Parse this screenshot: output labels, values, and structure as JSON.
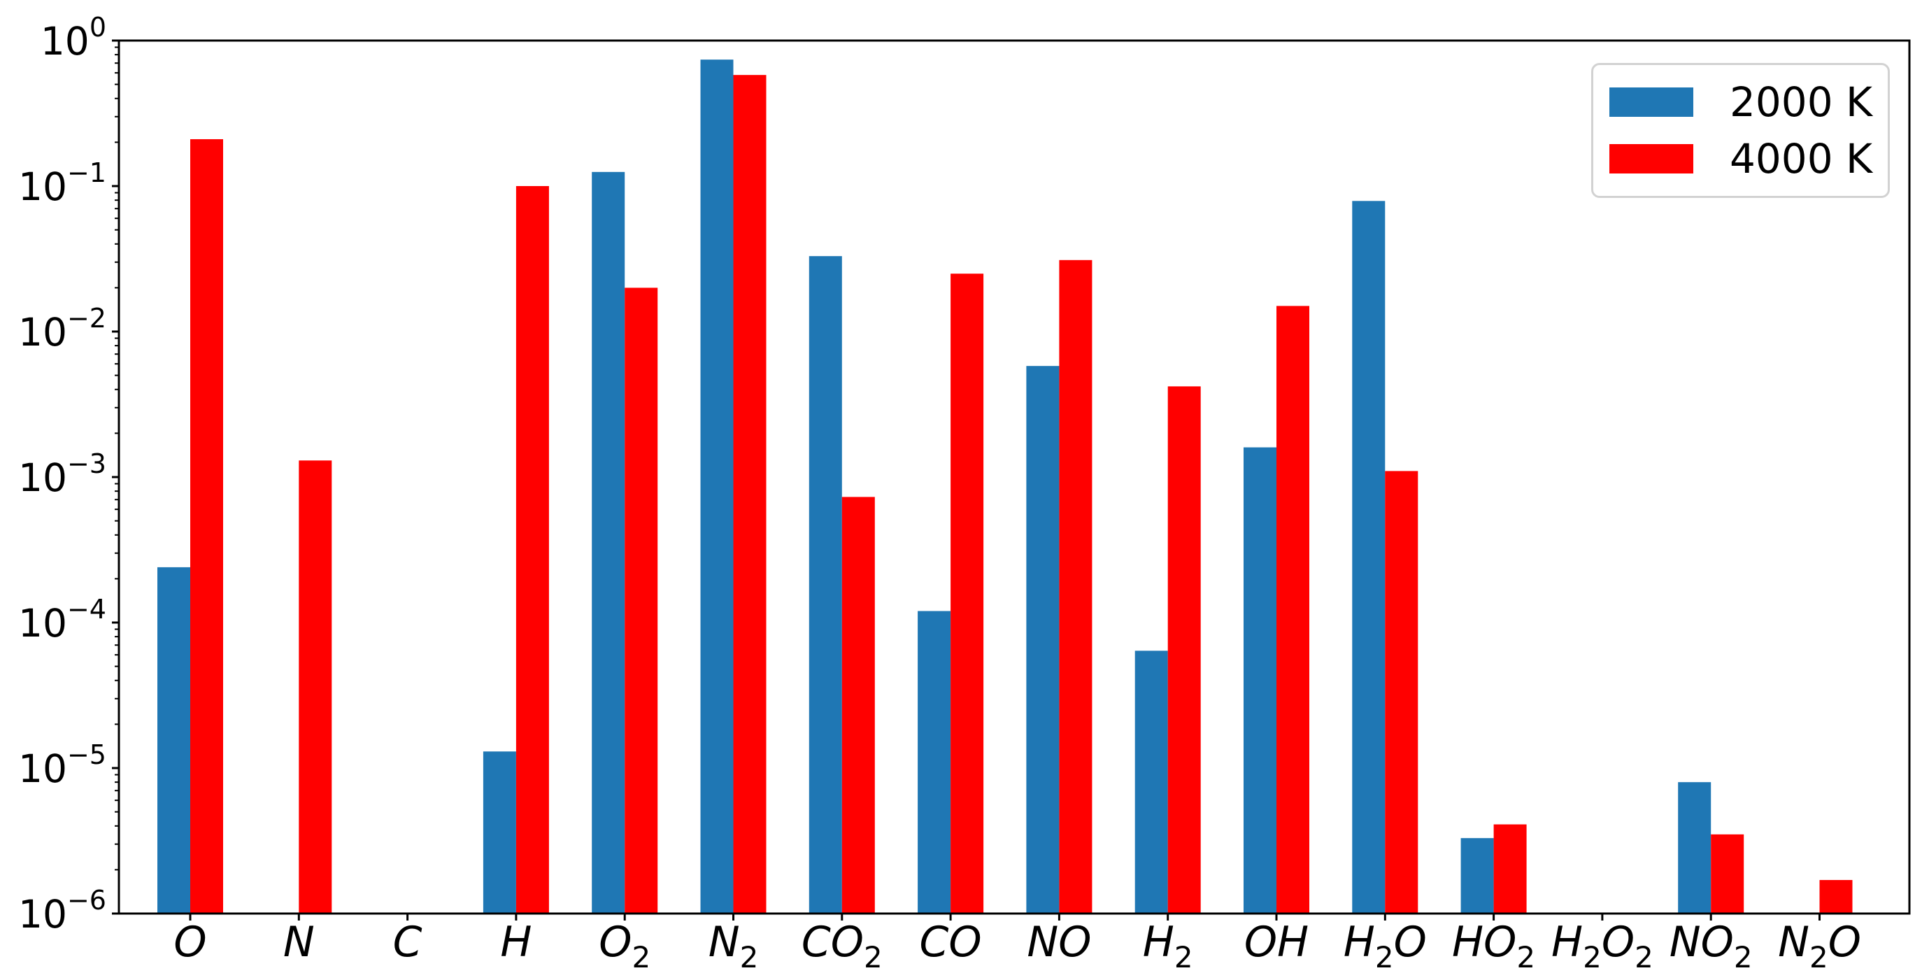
{
  "chart_data": {
    "type": "bar",
    "title": "",
    "xlabel": "",
    "ylabel": "",
    "yscale": "log",
    "ylim": [
      1e-06,
      1
    ],
    "grid": false,
    "legend_position": "upper right",
    "y_tick_exponents": [
      0,
      -1,
      -2,
      -3,
      -4,
      -5,
      -6
    ],
    "categories": [
      "O",
      "N",
      "C",
      "H",
      "O_2",
      "N_2",
      "CO_2",
      "CO",
      "NO",
      "H_2",
      "OH",
      "H_2O",
      "HO_2",
      "H_2O_2",
      "NO_2",
      "N_2O"
    ],
    "series": [
      {
        "name": "2000 K",
        "color": "#1f77b4",
        "values": [
          0.00024,
          0,
          0,
          1.3e-05,
          0.125,
          0.74,
          0.033,
          0.00012,
          0.0058,
          6.4e-05,
          0.0016,
          0.079,
          3.3e-06,
          0,
          8e-06,
          0
        ]
      },
      {
        "name": "4000 K",
        "color": "#ff0000",
        "values": [
          0.21,
          0.0013,
          0,
          0.1,
          0.02,
          0.58,
          0.00073,
          0.025,
          0.031,
          0.0042,
          0.015,
          0.0011,
          4.1e-06,
          0,
          3.5e-06,
          1.7e-06
        ]
      }
    ]
  },
  "legend": {
    "items": [
      {
        "label": "2000 K",
        "color": "#1f77b4"
      },
      {
        "label": "4000 K",
        "color": "#ff0000"
      }
    ]
  }
}
